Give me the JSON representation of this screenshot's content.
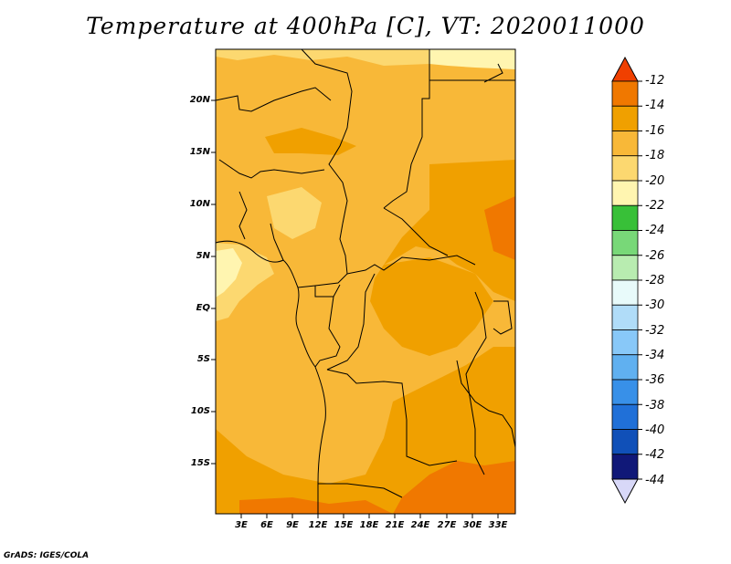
{
  "title": "Temperature at 400hPa [C], VT: 2020011000",
  "footer": "GrADS: IGES/COLA",
  "y_axis_labels": [
    "20N",
    "15N",
    "10N",
    "5N",
    "EQ",
    "5S",
    "10S",
    "15S"
  ],
  "x_axis_labels": [
    "3E",
    "6E",
    "9E",
    "12E",
    "15E",
    "18E",
    "21E",
    "24E",
    "27E",
    "30E",
    "33E"
  ],
  "colorbar": {
    "labels": [
      "-12",
      "-14",
      "-16",
      "-18",
      "-20",
      "-22",
      "-24",
      "-26",
      "-28",
      "-30",
      "-32",
      "-34",
      "-36",
      "-38",
      "-40",
      "-42",
      "-44"
    ],
    "colors": [
      "#f04000",
      "#f07800",
      "#f0a000",
      "#f8b838",
      "#fcd870",
      "#fff5b0",
      "#38c038",
      "#78d878",
      "#b8ecb0",
      "#e8fafa",
      "#b0dcf8",
      "#88c8f8",
      "#60b0f0",
      "#3890e8",
      "#2070d8",
      "#1050b8",
      "#101878",
      "#d8d8f8"
    ],
    "top_color": "#f04000",
    "bottom_color": "#d8d8f8"
  },
  "map_colors": {
    "base": "#f8b838",
    "light": "#fcd870",
    "lighter": "#fff5b0",
    "warm": "#f0a000",
    "hot": "#f07800"
  }
}
